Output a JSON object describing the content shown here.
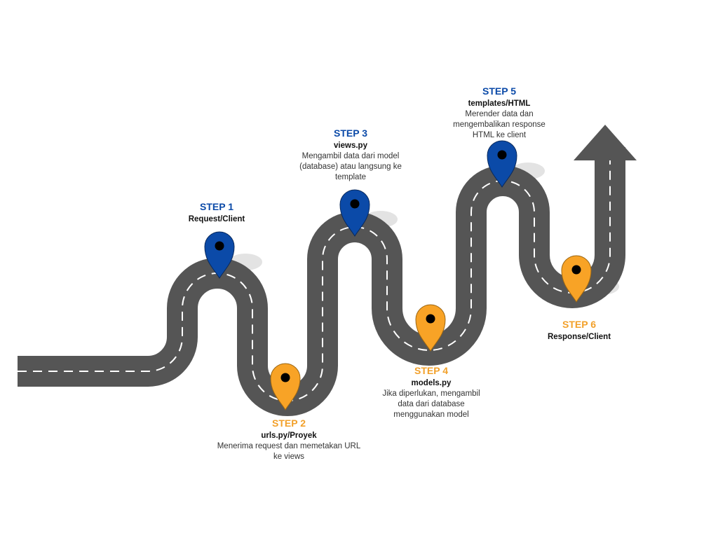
{
  "colors": {
    "road": "#555555",
    "dash": "#ffffff",
    "pin_blue": "#0b4aa8",
    "pin_orange": "#f8a326",
    "shadow": "#e3e3e3"
  },
  "steps": [
    {
      "title": "STEP 1",
      "name": "Request/Client",
      "desc": [],
      "color": "blue"
    },
    {
      "title": "STEP 2",
      "name": "urls.py/Proyek",
      "desc": [
        "Menerima request dan memetakan URL",
        "ke views"
      ],
      "color": "orange"
    },
    {
      "title": "STEP 3",
      "name": "views.py",
      "desc": [
        "Mengambil data dari model",
        "(database) atau langsung ke",
        "template"
      ],
      "color": "blue"
    },
    {
      "title": "STEP 4",
      "name": "models.py",
      "desc": [
        "Jika diperlukan, mengambil",
        "data dari database",
        "menggunakan model"
      ],
      "color": "orange"
    },
    {
      "title": "STEP 5",
      "name": "templates/HTML",
      "desc": [
        "Merender data dan",
        "mengembalikan response",
        "HTML ke client"
      ],
      "color": "blue"
    },
    {
      "title": "STEP 6",
      "name": "Response/Client",
      "desc": [],
      "color": "orange"
    }
  ]
}
